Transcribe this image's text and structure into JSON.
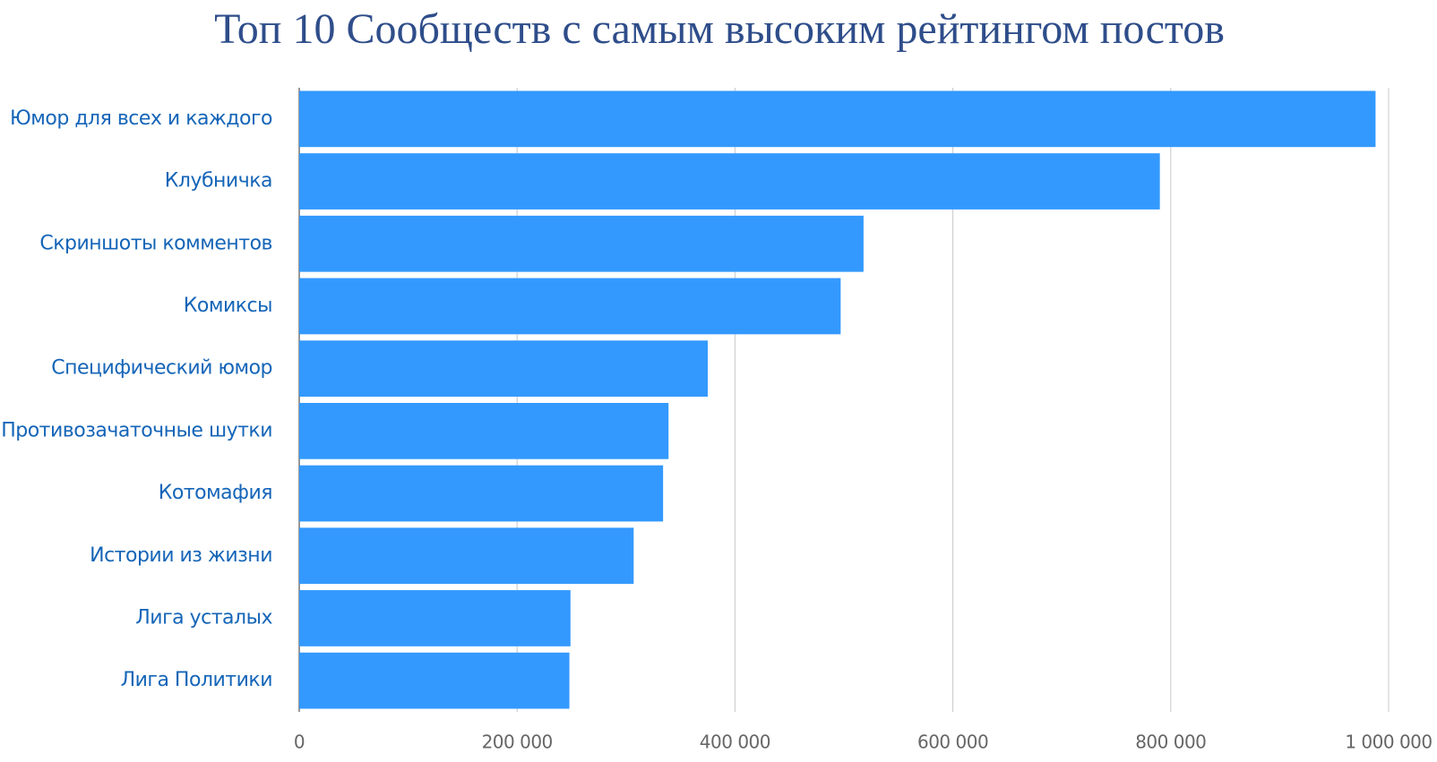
{
  "chart_data": {
    "type": "bar",
    "orientation": "horizontal",
    "title": "Топ 10 Сообществ с самым высоким рейтингом постов",
    "categories": [
      "Юмор для всех и каждого",
      "Клубничка",
      "Скриншоты комментов",
      "Комиксы",
      "Специфический юмор",
      "Противозачаточные шутки",
      "Котомафия",
      "Истории из жизни",
      "Лига усталых",
      "Лига Политики"
    ],
    "values": [
      988000,
      790000,
      518000,
      497000,
      375000,
      339000,
      334000,
      307000,
      249000,
      248000
    ],
    "color": "#3399ff",
    "xlim": [
      0,
      1000000
    ],
    "xticks": [
      0,
      {
        "value": 200000,
        "label": "200 000"
      },
      {
        "value": 400000,
        "label": "400 000"
      },
      {
        "value": 600000,
        "label": "600 000"
      },
      {
        "value": 800000,
        "label": "800 000"
      },
      {
        "value": 1000000,
        "label": "1 000 000"
      }
    ],
    "grid": true
  }
}
